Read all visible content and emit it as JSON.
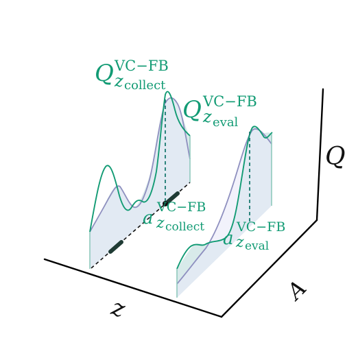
{
  "axes": {
    "z_label": "z",
    "a_label": "A",
    "q_label": "Q"
  },
  "labels": {
    "q_collect": {
      "base": "Q",
      "sup": "VC−FB",
      "sub": "z",
      "subsub": "collect"
    },
    "q_eval": {
      "base": "Q",
      "sup": "VC−FB",
      "sub": "z",
      "subsub": "eval"
    },
    "a_collect": {
      "base": "a",
      "sup": "VC−FB",
      "sub": "z",
      "subsub": "collect"
    },
    "a_eval": {
      "base": "a",
      "sup": "VC−FB",
      "sub": "z",
      "subsub": "eval"
    }
  },
  "colors": {
    "green": "#129b74",
    "purple": "#8e8fbf",
    "fill_teal": "#b8d8d8",
    "fill_lavender": "#e9e9f8",
    "fill_mint": "#d7eee6",
    "axis": "#000000",
    "dark_marker": "#1f3b34"
  }
}
